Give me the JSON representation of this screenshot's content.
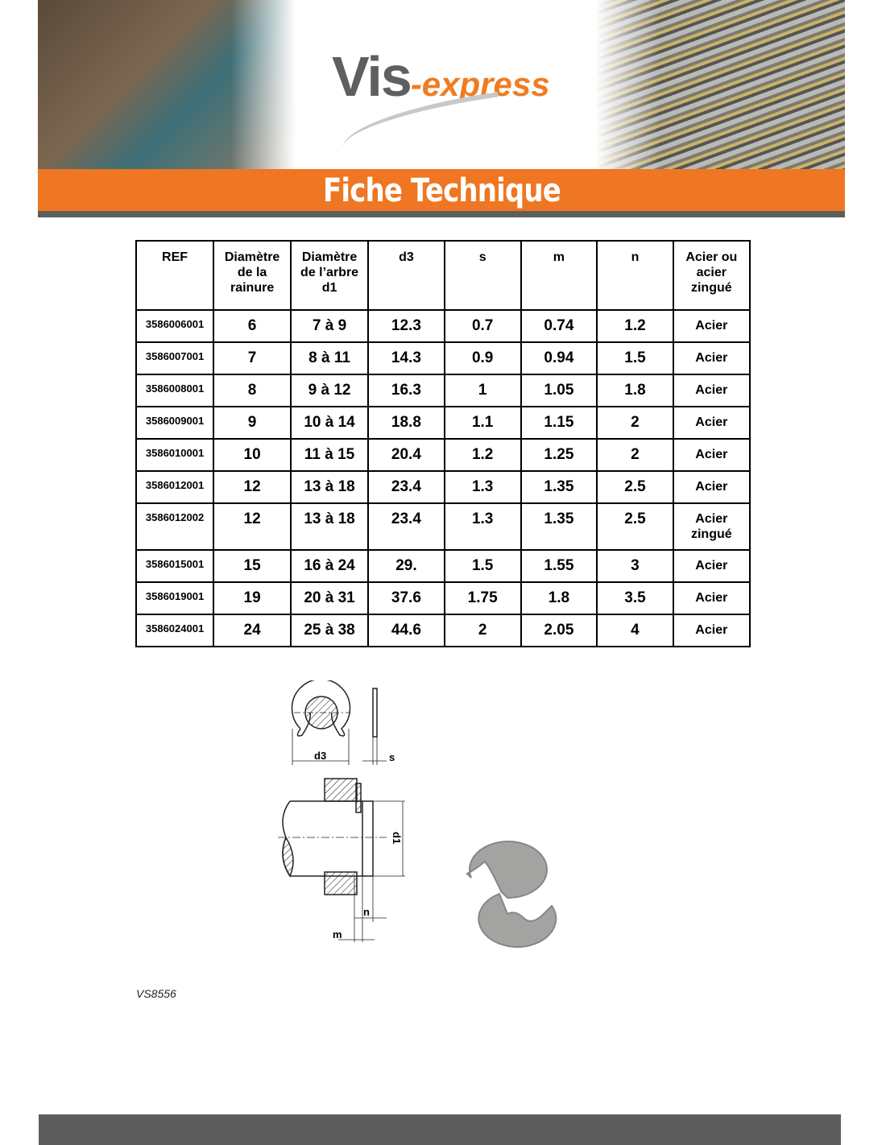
{
  "brand": {
    "logo_main": "Vis",
    "logo_suffix": "-express"
  },
  "banner": {
    "title": "Fiche Technique"
  },
  "table": {
    "headers": [
      "REF",
      "Diamètre de la rainure",
      "Diamètre de l’arbre d1",
      "d3",
      "s",
      "m",
      "n",
      "Acier ou acier zingué"
    ],
    "rows": [
      [
        "3586006001",
        "6",
        "7 à 9",
        "12.3",
        "0.7",
        "0.74",
        "1.2",
        "Acier"
      ],
      [
        "3586007001",
        "7",
        "8 à 11",
        "14.3",
        "0.9",
        "0.94",
        "1.5",
        "Acier"
      ],
      [
        "3586008001",
        "8",
        "9 à 12",
        "16.3",
        "1",
        "1.05",
        "1.8",
        "Acier"
      ],
      [
        "3586009001",
        "9",
        "10 à 14",
        "18.8",
        "1.1",
        "1.15",
        "2",
        "Acier"
      ],
      [
        "3586010001",
        "10",
        "11 à 15",
        "20.4",
        "1.2",
        "1.25",
        "2",
        "Acier"
      ],
      [
        "3586012001",
        "12",
        "13 à 18",
        "23.4",
        "1.3",
        "1.35",
        "2.5",
        "Acier"
      ],
      [
        "3586012002",
        "12",
        "13 à 18",
        "23.4",
        "1.3",
        "1.35",
        "2.5",
        "Acier zingué"
      ],
      [
        "3586015001",
        "15",
        "16 à 24",
        "29.",
        "1.5",
        "1.55",
        "3",
        "Acier"
      ],
      [
        "3586019001",
        "19",
        "20 à 31",
        "37.6",
        "1.75",
        "1.8",
        "3.5",
        "Acier"
      ],
      [
        "3586024001",
        "24",
        "25 à 38",
        "44.6",
        "2",
        "2.05",
        "4",
        "Acier"
      ]
    ]
  },
  "diagram": {
    "labels": {
      "d3": "d3",
      "s": "s",
      "d1": "d1",
      "n": "n",
      "m": "m"
    }
  },
  "footer": {
    "code": "VS8556"
  },
  "colors": {
    "accent": "#ef7622",
    "gray": "#5d5d5d"
  }
}
